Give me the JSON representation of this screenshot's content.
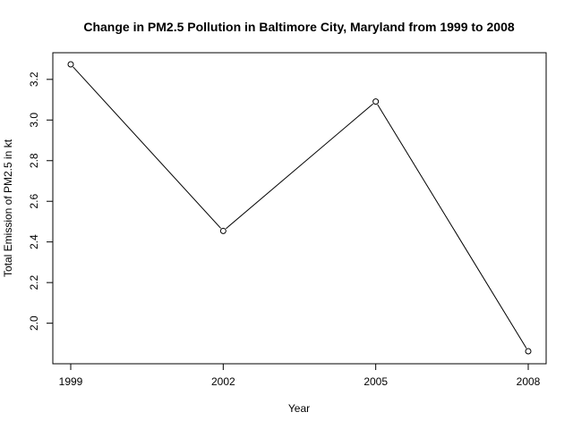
{
  "chart_data": {
    "type": "line",
    "title": "Change in PM2.5 Pollution in Baltimore City, Maryland from 1999 to 2008",
    "xlabel": "Year",
    "ylabel": "Total Emission of PM2.5 in kt",
    "x": [
      1999,
      2002,
      2005,
      2008
    ],
    "y": [
      3.274,
      2.454,
      3.091,
      1.862
    ],
    "xlim": [
      1999,
      2008
    ],
    "ylim": [
      1.862,
      3.274
    ],
    "x_ticks": [
      "1999",
      "2002",
      "2005",
      "2008"
    ],
    "y_ticks": [
      "2.0",
      "2.2",
      "2.4",
      "2.6",
      "2.8",
      "3.0",
      "3.2"
    ],
    "marker": "open-circle",
    "line_color": "#000000",
    "grid": false,
    "legend": "none"
  }
}
